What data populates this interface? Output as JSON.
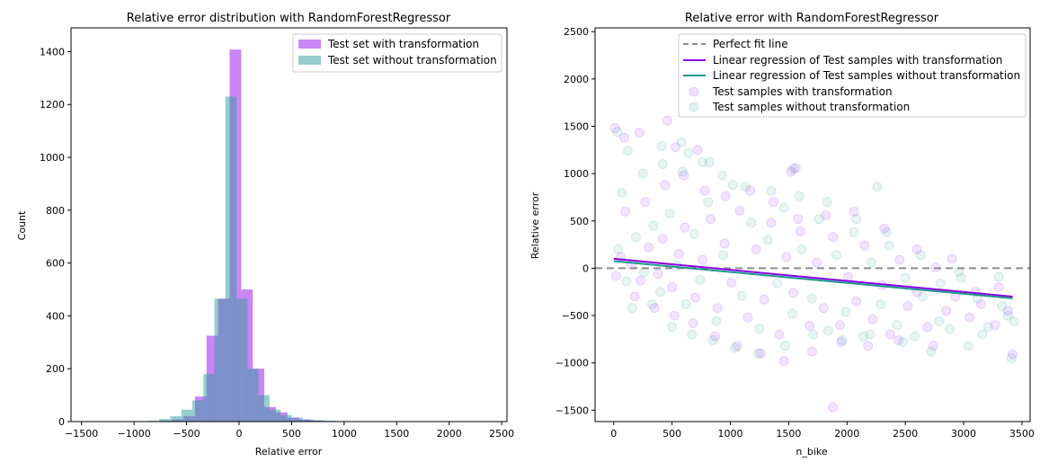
{
  "chart_data": [
    {
      "type": "bar",
      "subtype": "histogram-overlay",
      "title": "Relative error distribution with RandomForestRegressor",
      "xlabel": "Relative error",
      "ylabel": "Count",
      "xlim": [
        -1600,
        2550
      ],
      "ylim": [
        0,
        1490
      ],
      "xticks": [
        -1500,
        -1000,
        -500,
        0,
        500,
        1000,
        1500,
        2000,
        2500
      ],
      "xtick_labels": [
        "−1500",
        "−1000",
        "−500",
        "0",
        "500",
        "1000",
        "1500",
        "2000",
        "2500"
      ],
      "yticks": [
        0,
        200,
        400,
        600,
        800,
        1000,
        1200,
        1400
      ],
      "ytick_labels": [
        "0",
        "200",
        "400",
        "600",
        "800",
        "1000",
        "1200",
        "1400"
      ],
      "legend_position": "top-right",
      "series": [
        {
          "name": "Test set with transformation",
          "color": "#a020f0",
          "opacity": 0.55,
          "bins": [
            [
              -750,
              -640,
              3
            ],
            [
              -640,
              -530,
              8
            ],
            [
              -530,
              -420,
              20
            ],
            [
              -420,
              -310,
              95
            ],
            [
              -310,
              -200,
              325
            ],
            [
              -200,
              -90,
              465
            ],
            [
              -90,
              20,
              1408
            ],
            [
              20,
              130,
              500
            ],
            [
              130,
              240,
              200
            ],
            [
              240,
              350,
              55
            ],
            [
              350,
              460,
              35
            ],
            [
              460,
              570,
              15
            ],
            [
              570,
              680,
              8
            ],
            [
              680,
              790,
              4
            ],
            [
              790,
              900,
              2
            ],
            [
              900,
              1010,
              1
            ]
          ]
        },
        {
          "name": "Test set without transformation",
          "color": "#2e9e9e",
          "opacity": 0.5,
          "bins": [
            [
              -860,
              -760,
              3
            ],
            [
              -760,
              -655,
              10
            ],
            [
              -655,
              -550,
              20
            ],
            [
              -550,
              -445,
              45
            ],
            [
              -445,
              -340,
              80
            ],
            [
              -340,
              -235,
              180
            ],
            [
              -235,
              -130,
              465
            ],
            [
              -130,
              -25,
              1230
            ],
            [
              -25,
              80,
              465
            ],
            [
              80,
              185,
              200
            ],
            [
              185,
              290,
              100
            ],
            [
              290,
              395,
              45
            ],
            [
              395,
              500,
              25
            ],
            [
              500,
              605,
              15
            ],
            [
              605,
              710,
              8
            ],
            [
              710,
              815,
              5
            ],
            [
              815,
              920,
              3
            ],
            [
              920,
              1025,
              2
            ],
            [
              1025,
              1130,
              1
            ],
            [
              1130,
              1235,
              1
            ]
          ]
        }
      ]
    },
    {
      "type": "scatter",
      "title": "Relative error with RandomForestRegressor",
      "xlabel": "n_bike",
      "ylabel": "Relative error",
      "xlim": [
        -160,
        3570
      ],
      "ylim": [
        -1620,
        2540
      ],
      "xticks": [
        0,
        500,
        1000,
        1500,
        2000,
        2500,
        3000,
        3500
      ],
      "xtick_labels": [
        "0",
        "500",
        "1000",
        "1500",
        "2000",
        "2500",
        "3000",
        "3500"
      ],
      "yticks": [
        -1500,
        -1000,
        -500,
        0,
        500,
        1000,
        1500,
        2000,
        2500
      ],
      "ytick_labels": [
        "−1500",
        "−1000",
        "−500",
        "0",
        "500",
        "1000",
        "1500",
        "2000",
        "2500"
      ],
      "legend_position": "top-right",
      "legend": [
        "Perfect fit line",
        "Linear regression of Test samples with transformation",
        "Linear regression of Test samples without transformation",
        "Test samples with transformation",
        "Test samples without transformation"
      ],
      "perfect_fit_line": {
        "y": 0,
        "color": "#8c8c8c"
      },
      "regression_lines": [
        {
          "name": "Linear regression of Test samples with transformation",
          "color": "#8a00e6",
          "x": [
            0,
            3420
          ],
          "y": [
            100,
            -300
          ]
        },
        {
          "name": "Linear regression of Test samples without transformation",
          "color": "#1f9a8c",
          "x": [
            0,
            3420
          ],
          "y": [
            75,
            -318
          ]
        }
      ],
      "series": [
        {
          "name": "Test samples with transformation",
          "color": "#9b30ff",
          "points": [
            [
              12,
              1480
            ],
            [
              90,
              1380
            ],
            [
              220,
              1430
            ],
            [
              460,
              1560
            ],
            [
              530,
              1280
            ],
            [
              720,
              1250
            ],
            [
              1560,
              1060
            ],
            [
              1520,
              1020
            ],
            [
              1880,
              -1470
            ],
            [
              20,
              -80
            ],
            [
              60,
              120
            ],
            [
              150,
              40
            ],
            [
              230,
              -130
            ],
            [
              300,
              220
            ],
            [
              380,
              -60
            ],
            [
              420,
              310
            ],
            [
              500,
              -200
            ],
            [
              560,
              150
            ],
            [
              610,
              430
            ],
            [
              700,
              -310
            ],
            [
              760,
              90
            ],
            [
              830,
              520
            ],
            [
              890,
              -420
            ],
            [
              950,
              260
            ],
            [
              1010,
              -150
            ],
            [
              1080,
              610
            ],
            [
              1150,
              -520
            ],
            [
              1220,
              200
            ],
            [
              1290,
              -330
            ],
            [
              1350,
              480
            ],
            [
              1420,
              -700
            ],
            [
              1480,
              120
            ],
            [
              1540,
              -260
            ],
            [
              1600,
              390
            ],
            [
              1680,
              -610
            ],
            [
              1740,
              60
            ],
            [
              1800,
              -420
            ],
            [
              1880,
              330
            ],
            [
              1950,
              -780
            ],
            [
              2010,
              -90
            ],
            [
              2080,
              -350
            ],
            [
              2150,
              240
            ],
            [
              2220,
              -540
            ],
            [
              2300,
              -180
            ],
            [
              2370,
              -700
            ],
            [
              2450,
              90
            ],
            [
              2520,
              -400
            ],
            [
              2600,
              -250
            ],
            [
              2690,
              -620
            ],
            [
              2760,
              10
            ],
            [
              2850,
              -450
            ],
            [
              2930,
              -300
            ],
            [
              3050,
              -520
            ],
            [
              3150,
              -380
            ],
            [
              3270,
              -600
            ],
            [
              3380,
              -450
            ],
            [
              3420,
              -910
            ],
            [
              100,
              600
            ],
            [
              180,
              -300
            ],
            [
              270,
              700
            ],
            [
              350,
              -420
            ],
            [
              440,
              880
            ],
            [
              520,
              -500
            ],
            [
              600,
              980
            ],
            [
              680,
              -580
            ],
            [
              780,
              820
            ],
            [
              870,
              -720
            ],
            [
              960,
              760
            ],
            [
              1060,
              -820
            ],
            [
              1170,
              820
            ],
            [
              1260,
              -900
            ],
            [
              1370,
              700
            ],
            [
              1460,
              -980
            ],
            [
              1580,
              520
            ],
            [
              1700,
              -880
            ],
            [
              1820,
              560
            ],
            [
              1940,
              -600
            ],
            [
              2060,
              600
            ],
            [
              2180,
              -820
            ],
            [
              2320,
              420
            ],
            [
              2440,
              -760
            ],
            [
              2600,
              200
            ],
            [
              2740,
              -820
            ],
            [
              2900,
              100
            ],
            [
              3100,
              -250
            ],
            [
              3300,
              -200
            ]
          ]
        },
        {
          "name": "Test samples without transformation",
          "color": "#3aa897",
          "points": [
            [
              30,
              1440
            ],
            [
              120,
              1240
            ],
            [
              410,
              1290
            ],
            [
              580,
              1330
            ],
            [
              640,
              1220
            ],
            [
              820,
              1120
            ],
            [
              1540,
              1050
            ],
            [
              2260,
              860
            ],
            [
              40,
              200
            ],
            [
              110,
              -140
            ],
            [
              190,
              330
            ],
            [
              260,
              -40
            ],
            [
              340,
              450
            ],
            [
              400,
              -250
            ],
            [
              480,
              580
            ],
            [
              540,
              30
            ],
            [
              620,
              -380
            ],
            [
              690,
              360
            ],
            [
              740,
              -120
            ],
            [
              810,
              700
            ],
            [
              880,
              -560
            ],
            [
              940,
              140
            ],
            [
              1020,
              880
            ],
            [
              1100,
              -290
            ],
            [
              1180,
              480
            ],
            [
              1250,
              -640
            ],
            [
              1320,
              300
            ],
            [
              1400,
              -160
            ],
            [
              1460,
              640
            ],
            [
              1530,
              -480
            ],
            [
              1610,
              200
            ],
            [
              1700,
              -320
            ],
            [
              1760,
              520
            ],
            [
              1840,
              -660
            ],
            [
              1910,
              140
            ],
            [
              1990,
              -460
            ],
            [
              2060,
              380
            ],
            [
              2140,
              -720
            ],
            [
              2210,
              60
            ],
            [
              2290,
              -380
            ],
            [
              2360,
              240
            ],
            [
              2430,
              -600
            ],
            [
              2500,
              -100
            ],
            [
              2580,
              -720
            ],
            [
              2650,
              -300
            ],
            [
              2720,
              -880
            ],
            [
              2800,
              -160
            ],
            [
              2880,
              -640
            ],
            [
              2960,
              -40
            ],
            [
              3040,
              -820
            ],
            [
              3120,
              -320
            ],
            [
              3210,
              -620
            ],
            [
              3300,
              -90
            ],
            [
              3380,
              -500
            ],
            [
              3430,
              -560
            ],
            [
              3410,
              -950
            ],
            [
              70,
              800
            ],
            [
              160,
              -420
            ],
            [
              250,
              1000
            ],
            [
              330,
              -380
            ],
            [
              420,
              1100
            ],
            [
              500,
              -620
            ],
            [
              590,
              1020
            ],
            [
              670,
              -700
            ],
            [
              760,
              1120
            ],
            [
              850,
              -760
            ],
            [
              930,
              980
            ],
            [
              1040,
              -840
            ],
            [
              1130,
              860
            ],
            [
              1240,
              -900
            ],
            [
              1350,
              820
            ],
            [
              1470,
              -820
            ],
            [
              1590,
              760
            ],
            [
              1710,
              -700
            ],
            [
              1830,
              700
            ],
            [
              1960,
              -760
            ],
            [
              2080,
              520
            ],
            [
              2200,
              -700
            ],
            [
              2340,
              380
            ],
            [
              2480,
              -780
            ],
            [
              2630,
              140
            ],
            [
              2790,
              -560
            ],
            [
              2980,
              -100
            ],
            [
              3160,
              -700
            ],
            [
              3330,
              -400
            ]
          ]
        }
      ]
    }
  ]
}
